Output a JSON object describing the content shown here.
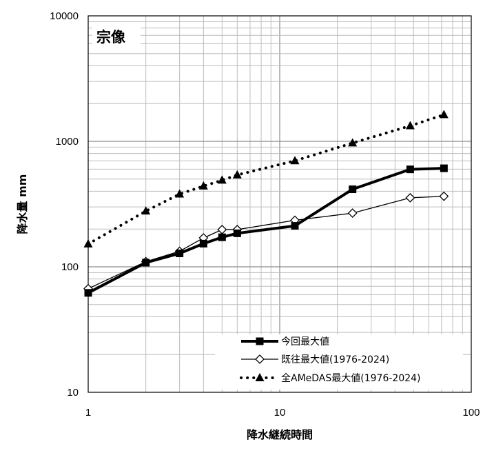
{
  "chart_data": {
    "type": "line",
    "title": "宗像",
    "xlabel": "降水継続時間",
    "ylabel": "降水量 mm",
    "xscale": "log",
    "yscale": "log",
    "xlim": [
      1,
      100
    ],
    "ylim": [
      10,
      10000
    ],
    "x_ticks": [
      "1",
      "10",
      "100"
    ],
    "y_ticks": [
      "10",
      "100",
      "1000",
      "10000"
    ],
    "grid": true,
    "legend_position": "bottom-right",
    "series": [
      {
        "name": "今回最大値",
        "style": "solid-thick",
        "marker": "filled-square",
        "x": [
          1,
          2,
          3,
          4,
          5,
          6,
          12,
          24,
          48,
          72
        ],
        "y": [
          62,
          108,
          128,
          153,
          172,
          185,
          212,
          415,
          598,
          610
        ]
      },
      {
        "name": "既往最大値(1976-2024)",
        "style": "solid-thin",
        "marker": "open-diamond",
        "x": [
          1,
          2,
          3,
          4,
          5,
          6,
          12,
          24,
          48,
          72
        ],
        "y": [
          67,
          110,
          133,
          170,
          198,
          198,
          235,
          268,
          355,
          365
        ]
      },
      {
        "name": "全AMeDAS最大値(1976-2024)",
        "style": "dotted",
        "marker": "filled-triangle",
        "x": [
          1,
          2,
          3,
          4,
          5,
          6,
          12,
          24,
          48,
          72
        ],
        "y": [
          152,
          278,
          380,
          440,
          490,
          540,
          700,
          970,
          1330,
          1630
        ]
      }
    ]
  }
}
